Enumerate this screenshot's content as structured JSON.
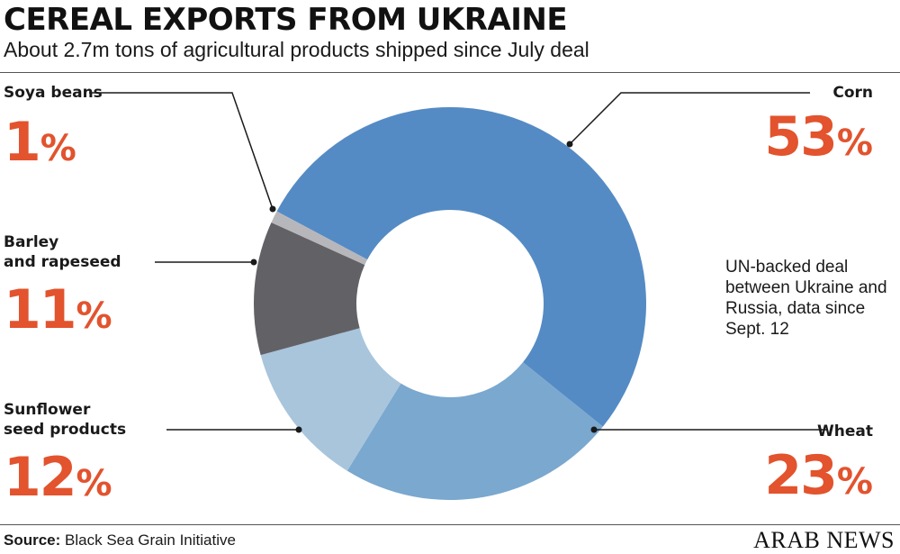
{
  "header": {
    "title": "CEREAL EXPORTS FROM UKRAINE",
    "subtitle": "About 2.7m tons of agricultural products shipped since July deal"
  },
  "chart_data": {
    "type": "pie",
    "style": "donut",
    "slices": [
      {
        "label": "Corn",
        "value": 53,
        "color": "#558bc4"
      },
      {
        "label": "Wheat",
        "value": 23,
        "color": "#7aa8cf"
      },
      {
        "label": "Sunflower seed products",
        "value": 12,
        "color": "#a8c5dc"
      },
      {
        "label": "Barley and rapeseed",
        "value": 11,
        "color": "#626266"
      },
      {
        "label": "Soya beans",
        "value": 1,
        "color": "#b7b7bb"
      }
    ],
    "unit": "%"
  },
  "labels": {
    "soya_name": "Soya beans",
    "soya_pct": "1",
    "barley_line1": "Barley",
    "barley_line2": "and rapeseed",
    "barley_pct": "11",
    "sunflower_line1": "Sunflower",
    "sunflower_line2": "seed products",
    "sunflower_pct": "12",
    "corn_name": "Corn",
    "corn_pct": "53",
    "wheat_name": "Wheat",
    "wheat_pct": "23",
    "percent_sign": "%"
  },
  "note": "UN-backed deal between Ukraine and Russia, data since Sept. 12",
  "footer": {
    "source_label": "Source:",
    "source_text": " Black Sea Grain Initiative",
    "brand": "ARAB NEWS"
  },
  "colors": {
    "accent": "#e2532e",
    "leader_line": "#1a1a1a"
  }
}
